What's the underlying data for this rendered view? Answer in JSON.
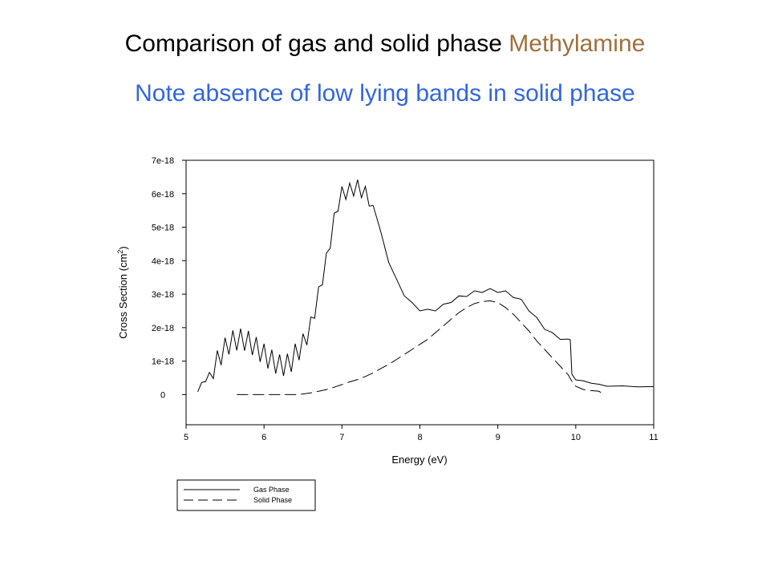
{
  "slide": {
    "title_main": "Comparison of gas and solid phase ",
    "title_accent": "Methylamine",
    "subtitle": "Note absence of low lying bands in solid phase",
    "colors": {
      "title": "#000000",
      "accent": "#a0703c",
      "subtitle": "#3366dd"
    }
  },
  "chart_data": {
    "type": "line",
    "title": "",
    "xlabel": "Energy (eV)",
    "ylabel_base": "Cross Section (cm",
    "ylabel_sup": "2",
    "ylabel_end": ")",
    "xlim": [
      5,
      11
    ],
    "ylim": [
      -9e-19,
      7e-18
    ],
    "x_ticks": [
      5,
      6,
      7,
      8,
      9,
      10,
      11
    ],
    "x_tick_labels": [
      "5",
      "6",
      "7",
      "8",
      "9",
      "10",
      "11"
    ],
    "y_ticks": [
      0,
      1e-18,
      2e-18,
      3e-18,
      4e-18,
      5e-18,
      6e-18,
      7e-18
    ],
    "y_tick_labels": [
      "0",
      "1e-18",
      "2e-18",
      "3e-18",
      "4e-18",
      "5e-18",
      "6e-18",
      "7e-18"
    ],
    "grid": false,
    "legend_position": "below",
    "series": [
      {
        "name": "Gas Phase",
        "style": "solid",
        "x": [
          5.15,
          5.2,
          5.25,
          5.3,
          5.35,
          5.4,
          5.45,
          5.5,
          5.55,
          5.6,
          5.65,
          5.7,
          5.75,
          5.8,
          5.85,
          5.9,
          5.95,
          6.0,
          6.05,
          6.1,
          6.15,
          6.2,
          6.25,
          6.3,
          6.35,
          6.4,
          6.45,
          6.5,
          6.55,
          6.6,
          6.65,
          6.7,
          6.75,
          6.8,
          6.85,
          6.9,
          6.95,
          7.0,
          7.05,
          7.1,
          7.15,
          7.2,
          7.25,
          7.3,
          7.35,
          7.4,
          7.45,
          7.5,
          7.6,
          7.7,
          7.8,
          7.9,
          8.0,
          8.1,
          8.2,
          8.3,
          8.4,
          8.5,
          8.6,
          8.7,
          8.8,
          8.9,
          9.0,
          9.1,
          9.2,
          9.3,
          9.4,
          9.5,
          9.6,
          9.7,
          9.8,
          9.9,
          9.93,
          9.95,
          10.0,
          10.1,
          10.2,
          10.3,
          10.4,
          10.6,
          10.8,
          11.0
        ],
        "values": [
          1.5e-19,
          3e-19,
          4.5e-19,
          6e-19,
          8e-19,
          1e-18,
          1.2e-18,
          1.38e-18,
          1.52e-18,
          1.6e-18,
          1.64e-18,
          1.65e-18,
          1.63e-18,
          1.58e-18,
          1.5e-18,
          1.4e-18,
          1.3e-18,
          1.2e-18,
          1.1e-18,
          1.02e-18,
          9.5e-19,
          8.8e-19,
          8.8e-19,
          9e-19,
          1e-18,
          1.2e-18,
          1.35e-18,
          1.5e-18,
          1.8e-18,
          2.1e-18,
          2.5e-18,
          3e-18,
          3.5e-18,
          4e-18,
          4.6e-18,
          5.2e-18,
          5.7e-18,
          6e-18,
          6.05e-18,
          6.1e-18,
          6.15e-18,
          6.2e-18,
          6.1e-18,
          6e-18,
          5.85e-18,
          5.6e-18,
          5.3e-18,
          4.8e-18,
          4e-18,
          3.4e-18,
          3e-18,
          2.7e-18,
          2.55e-18,
          2.5e-18,
          2.55e-18,
          2.65e-18,
          2.8e-18,
          2.9e-18,
          2.98e-18,
          3.05e-18,
          3.1e-18,
          3.12e-18,
          3.1e-18,
          3.05e-18,
          2.95e-18,
          2.8e-18,
          2.55e-18,
          2.25e-18,
          2e-18,
          1.8e-18,
          1.7e-18,
          1.65e-18,
          1.65e-18,
          6e-19,
          4.5e-19,
          4e-19,
          3.5e-19,
          3e-19,
          2.6e-19,
          2.5e-19,
          2.4e-19,
          2.3e-19
        ]
      },
      {
        "name": "Solid Phase",
        "style": "dashed",
        "x": [
          5.65,
          5.8,
          6.0,
          6.2,
          6.4,
          6.5,
          6.6,
          6.7,
          6.8,
          6.9,
          7.0,
          7.1,
          7.2,
          7.3,
          7.4,
          7.5,
          7.6,
          7.7,
          7.8,
          7.9,
          8.0,
          8.1,
          8.2,
          8.3,
          8.4,
          8.5,
          8.6,
          8.7,
          8.8,
          8.9,
          9.0,
          9.1,
          9.2,
          9.3,
          9.4,
          9.5,
          9.6,
          9.7,
          9.8,
          9.9,
          9.95,
          10.0,
          10.1,
          10.2,
          10.3,
          10.35
        ],
        "values": [
          0,
          0,
          0,
          0,
          0,
          2e-20,
          5e-20,
          1e-19,
          1.5e-19,
          2.2e-19,
          3e-19,
          3.8e-19,
          4.5e-19,
          5.4e-19,
          6.5e-19,
          7.8e-19,
          9e-19,
          1.05e-18,
          1.2e-18,
          1.35e-18,
          1.5e-18,
          1.65e-18,
          1.85e-18,
          2.05e-18,
          2.25e-18,
          2.45e-18,
          2.6e-18,
          2.72e-18,
          2.78e-18,
          2.8e-18,
          2.75e-18,
          2.6e-18,
          2.4e-18,
          2.15e-18,
          1.9e-18,
          1.6e-18,
          1.35e-18,
          1.1e-18,
          8.5e-19,
          6e-19,
          4e-19,
          2.5e-19,
          1.5e-19,
          1.2e-19,
          1e-19,
          0
        ]
      }
    ]
  }
}
